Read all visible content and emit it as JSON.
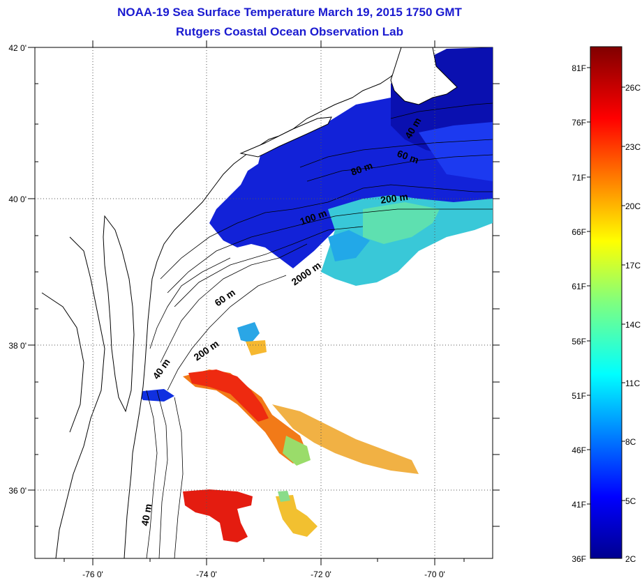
{
  "title": {
    "line1": "NOAA-19 Sea Surface Temperature March 19, 2015 1750 GMT",
    "line2": "Rutgers Coastal Ocean Observation Lab"
  },
  "map": {
    "lon_ticks": [
      "-76 0'",
      "-74 0'",
      "-72 0'",
      "-70 0'"
    ],
    "lat_ticks": [
      "42 0'",
      "40 0'",
      "38 0'",
      "36 0'"
    ],
    "lon_range": [
      -77,
      -69
    ],
    "lat_range": [
      35,
      42
    ],
    "depth_labels": [
      "40 m",
      "60 m",
      "80 m",
      "100 m",
      "200 m",
      "2000 m",
      "60 m",
      "200 m",
      "40 m",
      "40 m"
    ]
  },
  "colorbar": {
    "fahrenheit_labels": [
      "81F",
      "76F",
      "71F",
      "66F",
      "61F",
      "56F",
      "51F",
      "46F",
      "41F",
      "36F"
    ],
    "celsius_labels": [
      "26C",
      "23C",
      "20C",
      "17C",
      "14C",
      "11C",
      "8C",
      "5C",
      "2C"
    ],
    "colormap": "jet",
    "range_c": [
      2,
      28
    ]
  },
  "colors": {
    "title": "#1a1ad0",
    "land": "#ffffff",
    "coast": "#000000"
  }
}
